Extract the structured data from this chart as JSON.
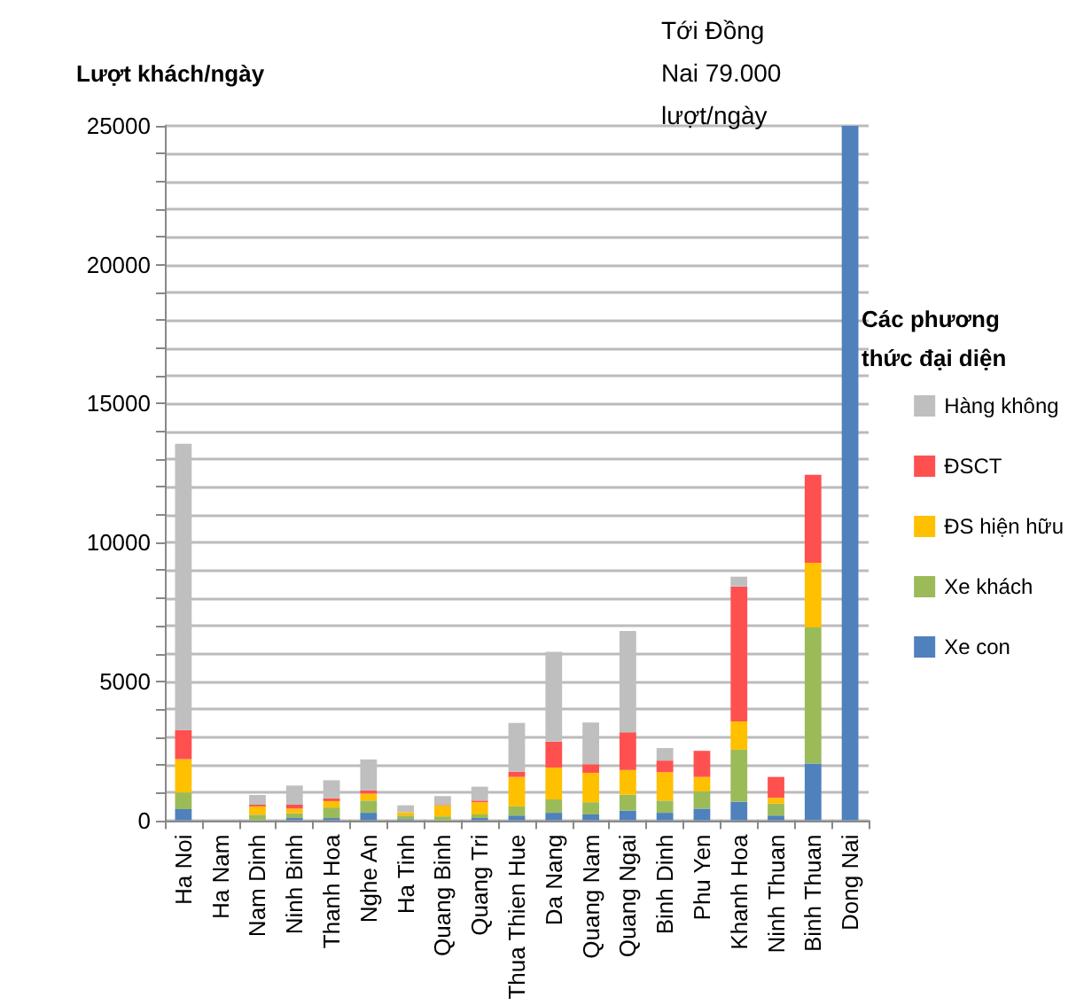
{
  "chart_data": {
    "type": "bar",
    "stacked": true,
    "ylabel": "Lượt khách/ngày",
    "legend_title": "Các phương thức đại diện",
    "annotations": [
      "Tới Đồng Nai 79.000 lượt/ngày"
    ],
    "categories": [
      "Ha Noi",
      "Ha Nam",
      "Nam Dinh",
      "Ninh Binh",
      "Thanh Hoa",
      "Nghe An",
      "Ha Tinh",
      "Quang Binh",
      "Quang Tri",
      "Thua Thien Hue",
      "Da Nang",
      "Quang Nam",
      "Quang Ngai",
      "Binh Dinh",
      "Phu Yen",
      "Khanh Hoa",
      "Ninh Thuan",
      "Binh Thuan",
      "Dong Nai"
    ],
    "series": [
      {
        "name": "Xe con",
        "color": "#4f81bd",
        "values": [
          400,
          0,
          null,
          80,
          80,
          270,
          40,
          null,
          80,
          170,
          270,
          210,
          350,
          270,
          420,
          670,
          170,
          2040,
          25000
        ]
      },
      {
        "name": "Xe khách",
        "color": "#9bbb59",
        "values": [
          600,
          0,
          200,
          170,
          380,
          440,
          130,
          140,
          130,
          330,
          480,
          440,
          570,
          440,
          620,
          1870,
          430,
          4900,
          0
        ]
      },
      {
        "name": "ĐS hiện hữu",
        "color": "#ffc000",
        "values": [
          1200,
          0,
          300,
          170,
          230,
          250,
          120,
          390,
          440,
          1060,
          1150,
          1060,
          890,
          1020,
          520,
          1020,
          210,
          2330,
          0
        ]
      },
      {
        "name": "ĐSCT",
        "color": "#ff5050",
        "values": [
          1050,
          0,
          60,
          140,
          100,
          120,
          null,
          20,
          60,
          190,
          930,
          310,
          1360,
          420,
          940,
          4860,
          750,
          3170,
          0
        ]
      },
      {
        "name": "Hàng không",
        "color": "#bfbfbf",
        "values": [
          10300,
          null,
          350,
          690,
          650,
          1110,
          250,
          320,
          500,
          1750,
          3230,
          1500,
          3640,
          450,
          0,
          350,
          0,
          0,
          0
        ]
      }
    ],
    "ylim": [
      0,
      25000
    ],
    "yticks": [
      0,
      {
        "value": 1000,
        "label": null
      },
      {
        "value": 2000,
        "label": null
      },
      {
        "value": 3000,
        "label": null
      },
      {
        "value": 4000,
        "label": null
      },
      5000,
      {
        "value": 6000,
        "label": null
      },
      {
        "value": 7000,
        "label": null
      },
      {
        "value": 8000,
        "label": null
      },
      {
        "value": 9000,
        "label": null
      },
      10000,
      {
        "value": 11000,
        "label": null
      },
      {
        "value": 12000,
        "label": null
      },
      {
        "value": 13000,
        "label": null
      },
      {
        "value": 14000,
        "label": null
      },
      15000,
      {
        "value": 16000,
        "label": null
      },
      {
        "value": 17000,
        "label": null
      },
      {
        "value": 18000,
        "label": null
      },
      {
        "value": 19000,
        "label": null
      },
      20000,
      {
        "value": 21000,
        "label": null
      },
      {
        "value": 22000,
        "label": null
      },
      {
        "value": 23000,
        "label": null
      },
      {
        "value": 24000,
        "label": null
      },
      25000
    ],
    "grid": "y",
    "legend": "right"
  }
}
